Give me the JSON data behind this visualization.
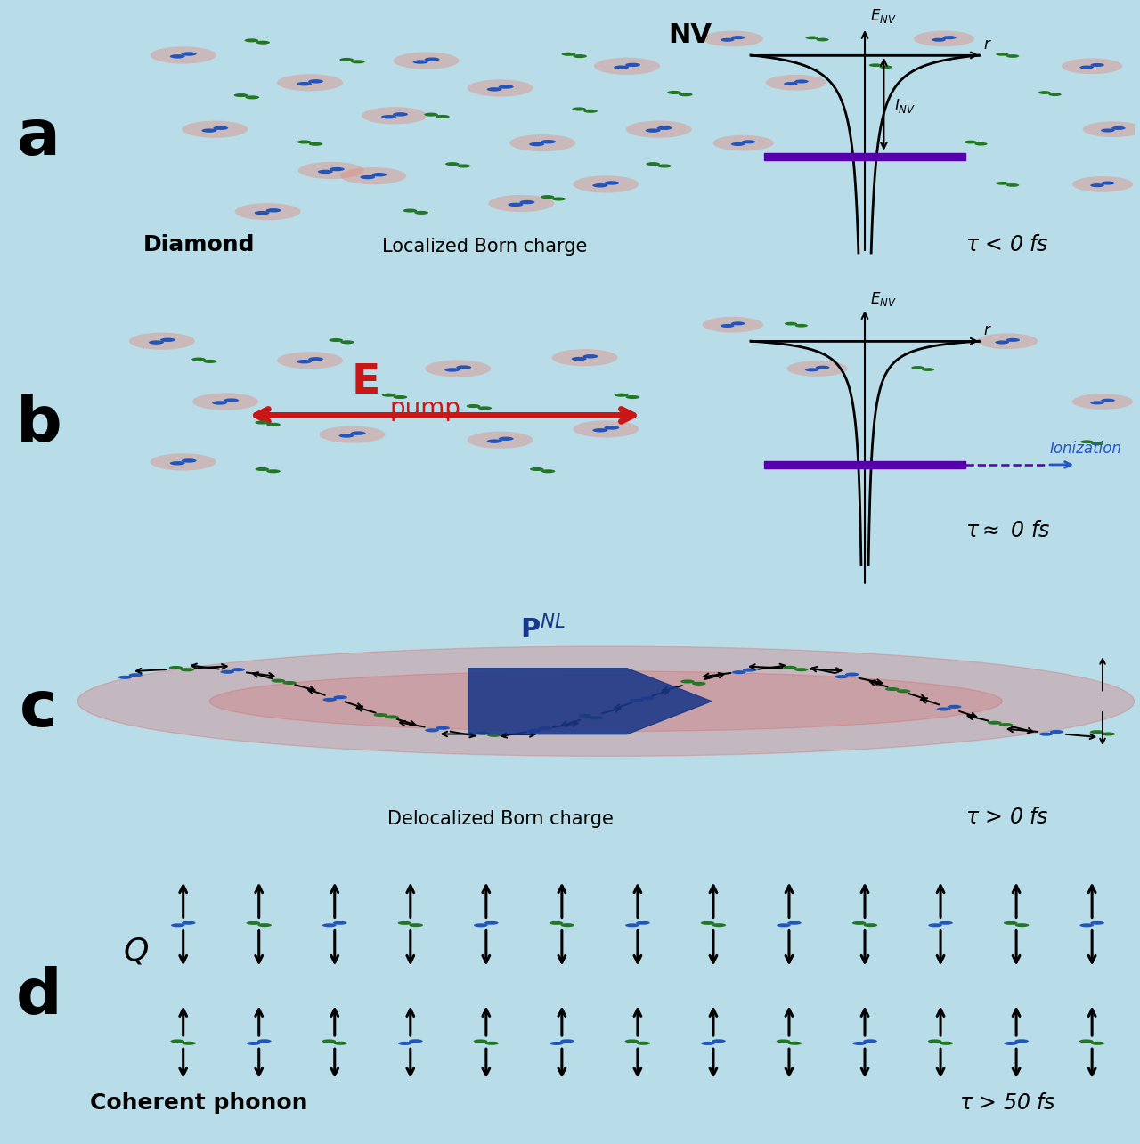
{
  "panel_bg": "#b8dde8",
  "outer_bg": "#b8dde8",
  "blue_nv": "#2255bb",
  "green_nv": "#227722",
  "pink_glow": "#e88070",
  "red_arrow": "#cc1515",
  "purple_level": "#5500aa",
  "dark_blue": "#1a3a8a",
  "panel_a_label": "a",
  "panel_b_label": "b",
  "panel_c_label": "c",
  "panel_d_label": "d",
  "nv_text": "NV",
  "diamond_text": "Diamond",
  "localized_text": "Localized Born charge",
  "delocalized_text": "Delocalized Born charge",
  "coherent_text": "Coherent phonon",
  "ionization_text": "Ionization",
  "tau_a": "$\\tau$ < 0 fs",
  "tau_b": "$\\tau \\approx$ 0 fs",
  "tau_c": "$\\tau$ > 0 fs",
  "tau_d": "$\\tau$ > 50 fs"
}
